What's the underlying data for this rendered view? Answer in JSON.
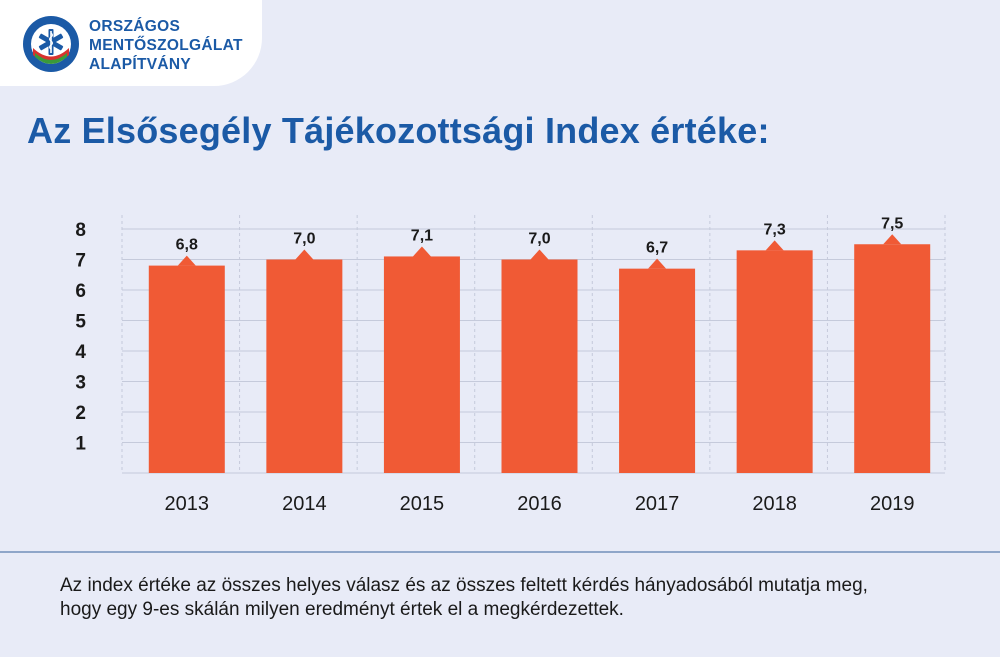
{
  "org": {
    "name_lines": [
      "ORSZÁGOS",
      "MENTŐSZOLGÁLAT",
      "ALAPÍTVÁNY"
    ],
    "seal_text": "ORSZÁGOS MENTŐSZOLGÁLAT",
    "brand_color": "#1b5aa6"
  },
  "title": "Az Elsősegély Tájékozottsági Index értéke:",
  "chart_data": {
    "type": "bar",
    "categories": [
      "2013",
      "2014",
      "2015",
      "2016",
      "2017",
      "2018",
      "2019"
    ],
    "values": [
      6.8,
      7.0,
      7.1,
      7.0,
      6.7,
      7.3,
      7.5
    ],
    "data_labels": [
      "6,8",
      "7,0",
      "7,1",
      "7,0",
      "6,7",
      "7,3",
      "7,5"
    ],
    "yticks": [
      1,
      2,
      3,
      4,
      5,
      6,
      7,
      8
    ],
    "ylim": [
      0,
      8
    ],
    "grid": true,
    "legend": "none",
    "bar_color": "#f05a35",
    "xlabel": "",
    "ylabel": ""
  },
  "note": "Az index értéke az összes helyes válasz és az összes feltett kérdés hányadosából mutatja meg, hogy egy 9-es skálán milyen eredményt értek el a megkérdezettek."
}
